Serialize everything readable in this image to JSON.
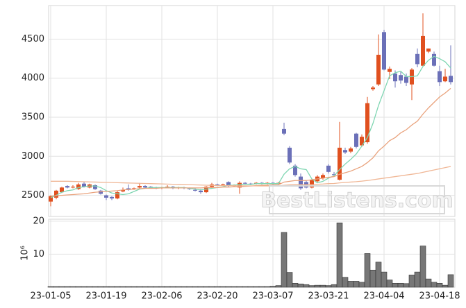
{
  "watermark": "BestListens.com",
  "chart_data": [
    {
      "type": "candlestick",
      "open": [
        2420,
        2470,
        2540,
        2620,
        2600,
        2580,
        2650,
        2600,
        2630,
        2560,
        2500,
        2480,
        2460,
        2550,
        2590,
        2580,
        2600,
        2620,
        2610,
        2600,
        2590,
        2600,
        2610,
        2590,
        2600,
        2590,
        2570,
        2560,
        2540,
        2610,
        2640,
        2630,
        2670,
        2620,
        2600,
        2660,
        2650,
        2650,
        2660,
        2650,
        2660,
        2650,
        3350,
        3110,
        2880,
        2740,
        2670,
        2600,
        2680,
        2720,
        2880,
        2770,
        2700,
        3080,
        3060,
        3290,
        3140,
        3180,
        3860,
        3920,
        4590,
        4080,
        4060,
        4040,
        4020,
        3920,
        4310,
        4160,
        4340,
        4310,
        4090,
        3960,
        4030
      ],
      "high": [
        2500,
        2570,
        2610,
        2630,
        2630,
        2660,
        2670,
        2650,
        2640,
        2570,
        2510,
        2490,
        2560,
        2600,
        2640,
        2600,
        2660,
        2630,
        2620,
        2610,
        2610,
        2630,
        2620,
        2610,
        2610,
        2600,
        2590,
        2580,
        2620,
        2660,
        2650,
        2650,
        2680,
        2640,
        2680,
        2670,
        2660,
        2670,
        2670,
        2670,
        2670,
        2670,
        3430,
        3130,
        2900,
        2780,
        2690,
        2710,
        2760,
        2780,
        2900,
        2800,
        3440,
        3110,
        3120,
        3300,
        3280,
        3760,
        3900,
        4560,
        4620,
        4150,
        4100,
        4080,
        4060,
        4130,
        4380,
        4830,
        4380,
        4340,
        4160,
        4120,
        4420
      ],
      "low": [
        2360,
        2450,
        2530,
        2590,
        2590,
        2570,
        2600,
        2590,
        2570,
        2510,
        2440,
        2440,
        2450,
        2540,
        2560,
        2570,
        2590,
        2590,
        2590,
        2580,
        2580,
        2590,
        2580,
        2580,
        2580,
        2570,
        2550,
        2520,
        2530,
        2600,
        2620,
        2620,
        2610,
        2610,
        2520,
        2640,
        2630,
        2640,
        2640,
        2640,
        2640,
        2640,
        3270,
        2900,
        2740,
        2570,
        2590,
        2590,
        2670,
        2700,
        2780,
        2740,
        2690,
        3030,
        3040,
        3100,
        3120,
        3160,
        3840,
        3900,
        4100,
        3990,
        3880,
        3930,
        3900,
        3720,
        4140,
        4150,
        4320,
        4150,
        3900,
        3950,
        3920
      ],
      "close": [
        2490,
        2560,
        2600,
        2600,
        2610,
        2640,
        2610,
        2640,
        2580,
        2520,
        2470,
        2460,
        2540,
        2570,
        2570,
        2590,
        2620,
        2600,
        2600,
        2590,
        2600,
        2610,
        2590,
        2600,
        2590,
        2580,
        2560,
        2540,
        2610,
        2640,
        2630,
        2640,
        2620,
        2630,
        2660,
        2650,
        2640,
        2660,
        2650,
        2660,
        2650,
        2660,
        3290,
        2920,
        2760,
        2590,
        2600,
        2700,
        2740,
        2760,
        2800,
        2760,
        3110,
        3050,
        3100,
        3120,
        3250,
        3680,
        3880,
        4300,
        4110,
        4120,
        3960,
        3970,
        3940,
        4110,
        4180,
        4540,
        4380,
        4160,
        3950,
        4020,
        3950
      ],
      "up_color": "#e0501f",
      "down_color": "#6b70b8",
      "series": [
        {
          "color": "#7fd6b2",
          "values": [
            2470,
            2500,
            2540,
            2560,
            2570,
            2600,
            2610,
            2620,
            2620,
            2600,
            2560,
            2530,
            2520,
            2510,
            2520,
            2550,
            2580,
            2590,
            2600,
            2600,
            2600,
            2600,
            2600,
            2600,
            2600,
            2590,
            2580,
            2570,
            2580,
            2590,
            2600,
            2610,
            2630,
            2630,
            2640,
            2640,
            2640,
            2650,
            2650,
            2650,
            2650,
            2650,
            2770,
            2840,
            2870,
            2840,
            2830,
            2710,
            2660,
            2680,
            2720,
            2750,
            2830,
            2900,
            2960,
            3030,
            3130,
            3240,
            3420,
            3650,
            3840,
            4030,
            4070,
            4090,
            4020,
            4020,
            4030,
            4150,
            4230,
            4280,
            4250,
            4210,
            4130
          ]
        },
        {
          "color": "#e9a27c",
          "values": [
            2490,
            2495,
            2500,
            2505,
            2510,
            2515,
            2520,
            2530,
            2540,
            2545,
            2550,
            2555,
            2560,
            2570,
            2575,
            2580,
            2585,
            2590,
            2590,
            2590,
            2595,
            2595,
            2595,
            2595,
            2595,
            2595,
            2595,
            2595,
            2600,
            2600,
            2600,
            2605,
            2605,
            2610,
            2610,
            2615,
            2620,
            2625,
            2630,
            2630,
            2635,
            2635,
            2670,
            2680,
            2690,
            2690,
            2690,
            2700,
            2710,
            2720,
            2730,
            2740,
            2770,
            2790,
            2810,
            2840,
            2870,
            2920,
            2980,
            3070,
            3130,
            3200,
            3240,
            3300,
            3340,
            3400,
            3450,
            3540,
            3620,
            3690,
            3760,
            3810,
            3870
          ]
        },
        {
          "color": "#f0b796",
          "values": [
            2680,
            2680,
            2680,
            2680,
            2678,
            2676,
            2674,
            2672,
            2670,
            2668,
            2666,
            2664,
            2662,
            2660,
            2658,
            2656,
            2654,
            2652,
            2650,
            2648,
            2646,
            2644,
            2642,
            2640,
            2638,
            2636,
            2634,
            2632,
            2630,
            2628,
            2626,
            2625,
            2624,
            2623,
            2622,
            2622,
            2621,
            2621,
            2620,
            2620,
            2620,
            2621,
            2630,
            2635,
            2638,
            2638,
            2638,
            2640,
            2642,
            2645,
            2650,
            2652,
            2660,
            2665,
            2670,
            2675,
            2682,
            2690,
            2700,
            2710,
            2720,
            2730,
            2740,
            2750,
            2760,
            2770,
            2780,
            2795,
            2810,
            2825,
            2840,
            2855,
            2870
          ]
        }
      ],
      "ylim": [
        2230,
        4930
      ],
      "yticks": [
        2500,
        3000,
        3500,
        4000,
        4500
      ],
      "grid": true
    },
    {
      "type": "bar",
      "categories": [
        "23-01-05",
        null,
        null,
        null,
        null,
        null,
        null,
        null,
        null,
        null,
        "23-01-19",
        null,
        null,
        null,
        null,
        null,
        null,
        null,
        null,
        null,
        "23-02-06",
        null,
        null,
        null,
        null,
        null,
        null,
        null,
        null,
        null,
        "23-02-20",
        null,
        null,
        null,
        null,
        null,
        null,
        null,
        null,
        null,
        "23-03-07",
        null,
        null,
        null,
        null,
        null,
        null,
        null,
        null,
        null,
        "23-03-21",
        null,
        null,
        null,
        null,
        null,
        null,
        null,
        null,
        null,
        "23-04-04",
        null,
        null,
        null,
        null,
        null,
        null,
        null,
        null,
        null,
        "23-04-18",
        null,
        null
      ],
      "values": [
        0.2,
        0.2,
        0.2,
        0.2,
        0.2,
        0.2,
        0.2,
        0.2,
        0.2,
        0.2,
        0.2,
        0.2,
        0.2,
        0.2,
        0.2,
        0.2,
        0.2,
        0.2,
        0.2,
        0.2,
        0.2,
        0.2,
        0.2,
        0.2,
        0.2,
        0.2,
        0.2,
        0.2,
        0.2,
        0.2,
        0.2,
        0.2,
        0.2,
        0.2,
        0.2,
        0.2,
        0.2,
        0.2,
        0.2,
        0.2,
        0.3,
        0.5,
        16.6,
        4.5,
        1.2,
        1.0,
        0.8,
        0.5,
        0.6,
        0.6,
        0.5,
        0.8,
        19.5,
        3.0,
        1.8,
        1.8,
        1.5,
        10.2,
        5.2,
        7.6,
        4.6,
        2.2,
        1.2,
        1.2,
        1.1,
        3.7,
        4.6,
        12.5,
        2.5,
        1.5,
        1.2,
        0.6,
        3.8
      ],
      "color": "#777777",
      "ylabel": "10⁶",
      "ylim": [
        0,
        20.6
      ],
      "yticks": [
        10,
        20
      ],
      "grid": true
    }
  ]
}
